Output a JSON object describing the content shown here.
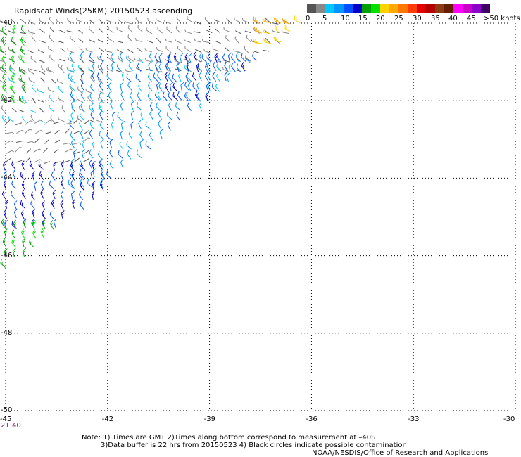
{
  "title": "Rapidscat Winds(25KM) 20150523 ascending",
  "legend": {
    "colors": [
      "#555555",
      "#888888",
      "#00c8ff",
      "#0096ff",
      "#0050ff",
      "#0000c8",
      "#00a000",
      "#00e000",
      "#ffd200",
      "#ffaa00",
      "#ff7800",
      "#ff3c00",
      "#e00000",
      "#b40000",
      "#8c3c14",
      "#641e00",
      "#ff00ff",
      "#c800c8",
      "#8c00c8",
      "#3c0064"
    ],
    "labels": [
      "0",
      "5",
      "10",
      "15",
      "20",
      "25",
      "30",
      "35",
      "40",
      "45",
      ">50 knots"
    ]
  },
  "axes": {
    "lon_ticks": [
      "-45",
      "-42",
      "-39",
      "-36",
      "-33",
      "-30"
    ],
    "lat_ticks": [
      "-40",
      "-42",
      "-44",
      "-46",
      "-48",
      "-50"
    ],
    "lon_range": [
      -45,
      -30
    ],
    "lat_range": [
      -50,
      -40
    ]
  },
  "time_label": "21:40",
  "notes": {
    "line1": "Note: 1) Times are GMT 2)Times along bottom correspond to measurement at –40S",
    "line2": "3)Data buffer is 22 hrs from 20150523 4) Black circles indicate possible contamination",
    "line3": "NOAA/NESDIS/Office of Research and Applications"
  },
  "chart_data": {
    "type": "wind-barbs",
    "swath_edge": {
      "lon_start": -36.2,
      "lat_start": -40.0,
      "lon_end": -45.0,
      "lat_end": -46.5
    },
    "regions": [
      {
        "lat": [
          -40.0,
          -41.3
        ],
        "lon": [
          -45.0,
          -36.5
        ],
        "speed": 3,
        "dir": 300
      },
      {
        "lat": [
          -40.0,
          -40.6
        ],
        "lon": [
          -37.5,
          -36.2
        ],
        "speed": 22,
        "dir": 290
      },
      {
        "lat": [
          -41.3,
          -42.6
        ],
        "lon": [
          -45.0,
          -42.0
        ],
        "speed": 4,
        "dir": 310
      },
      {
        "lat": [
          -41.0,
          -44.3
        ],
        "lon": [
          -43.0,
          -37.5
        ],
        "speed": 9,
        "dir": 330
      },
      {
        "lat": [
          -41.0,
          -42.0
        ],
        "lon": [
          -40.5,
          -37.5
        ],
        "speed": 12,
        "dir": 330
      },
      {
        "lat": [
          -42.6,
          -43.8
        ],
        "lon": [
          -45.0,
          -42.5
        ],
        "speed": 2,
        "dir": 60
      },
      {
        "lat": [
          -43.8,
          -45.3
        ],
        "lon": [
          -45.0,
          -42.0
        ],
        "speed": 13,
        "dir": 330
      },
      {
        "lat": [
          -45.3,
          -46.5
        ],
        "lon": [
          -45.0,
          -43.0
        ],
        "speed": 17,
        "dir": 330
      },
      {
        "lat": [
          -40.3,
          -42.2
        ],
        "lon": [
          -45.0,
          -44.2
        ],
        "speed": 17,
        "dir": 320
      }
    ]
  }
}
